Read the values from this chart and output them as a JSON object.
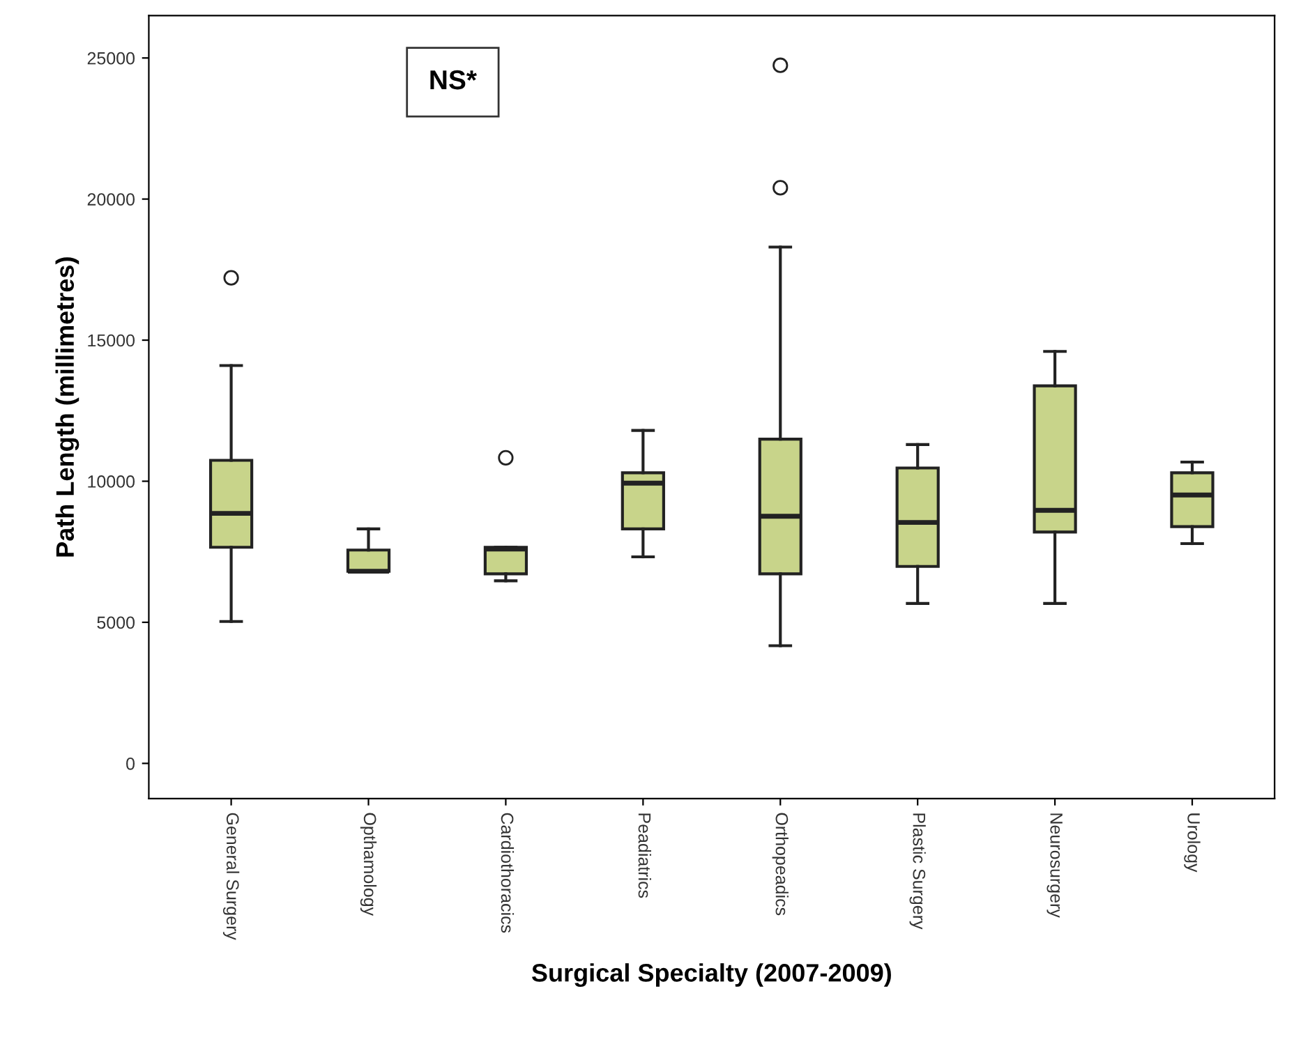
{
  "chart_data": {
    "type": "box",
    "xlabel": "Surgical Specialty (2007-2009)",
    "ylabel": "Path Length (millimetres)",
    "categories": [
      "General Surgery",
      "Opthamology",
      "Cardiothoracics",
      "Peadiatrics",
      "Orthopeadics",
      "Plastic Surgery",
      "Neurosurgery",
      "Urology"
    ],
    "boxes": [
      {
        "low": 5030,
        "q1": 7660,
        "median": 8860,
        "q3": 10740,
        "high": 14100,
        "outliers": [
          17210
        ]
      },
      {
        "low": 6810,
        "q1": 6810,
        "median": 6810,
        "q3": 7560,
        "high": 8310
      },
      {
        "low": 6470,
        "q1": 6720,
        "median": 7600,
        "q3": 7660,
        "high": 7660,
        "outliers": [
          10830
        ]
      },
      {
        "low": 7320,
        "q1": 8310,
        "median": 9930,
        "q3": 10300,
        "high": 11800
      },
      {
        "low": 4170,
        "q1": 6720,
        "median": 8760,
        "q3": 11490,
        "high": 18300,
        "outliers": [
          20400,
          24740
        ]
      },
      {
        "low": 5670,
        "q1": 6980,
        "median": 8540,
        "q3": 10470,
        "high": 11300
      },
      {
        "low": 5670,
        "q1": 8200,
        "median": 8970,
        "q3": 13380,
        "high": 14600
      },
      {
        "low": 7790,
        "q1": 8390,
        "median": 9510,
        "q3": 10300,
        "high": 10680
      }
    ],
    "color": "#c8d48a",
    "ylim": [
      -1250,
      26500
    ],
    "yticks": [
      0,
      5000,
      10000,
      15000,
      20000,
      25000
    ],
    "annotations": [
      "NS*"
    ],
    "grid": false
  }
}
